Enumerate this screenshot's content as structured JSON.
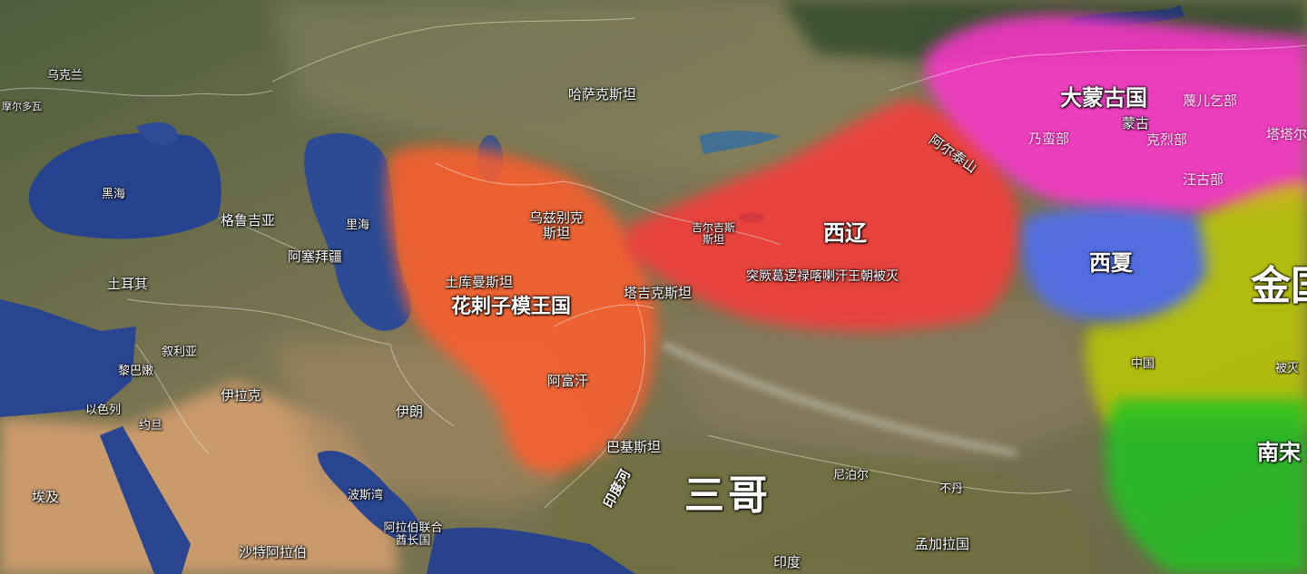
{
  "regions": {
    "khwarazm": {
      "name": "花剌子模王国",
      "color": "#ff6a3a"
    },
    "western_liao": {
      "name": "西辽",
      "subtitle": "突厥葛逻禄喀喇汗王朝被灭",
      "color": "#ff3a3a"
    },
    "mongol": {
      "name": "大蒙古国",
      "color": "#ff3dd0"
    },
    "western_xia": {
      "name": "西夏",
      "color": "#4a6aff"
    },
    "jin": {
      "name": "金国",
      "color": "#c8d000"
    },
    "southern_song": {
      "name": "南宋",
      "color": "#25c025"
    }
  },
  "labels": {
    "ukraine": "乌克兰",
    "moldova": "摩尔多瓦",
    "black_sea": "黑海",
    "georgia": "格鲁吉亚",
    "azerbaijan": "阿塞拜疆",
    "turkey": "土耳其",
    "syria": "叙利亚",
    "lebanon": "黎巴嫩",
    "iraq": "伊拉克",
    "israel": "以色列",
    "jordan": "约旦",
    "egypt": "埃及",
    "saudi": "沙特阿拉伯",
    "uae": "阿拉伯联合酋长国",
    "persian_gulf": "波斯湾",
    "iran": "伊朗",
    "caspian": "里海",
    "kazakhstan": "哈萨克斯坦",
    "uzbekistan": "乌兹别克斯坦",
    "turkmenistan": "土库曼斯坦",
    "afghanistan": "阿富汗",
    "tajikistan": "塔吉克斯坦",
    "kyrgyzstan": "吉尔吉斯斯坦",
    "pakistan": "巴基斯坦",
    "indus": "印度河",
    "india_big": "三哥",
    "india": "印度",
    "nepal": "尼泊尔",
    "bhutan": "不丹",
    "bangladesh": "孟加拉国",
    "china": "中国",
    "altai": "阿尔泰山",
    "mongolia": "蒙古",
    "naiman": "乃蛮部",
    "kereit": "克烈部",
    "ongut": "汪古部",
    "merkit": "蔑儿乞部",
    "tatar": "塔塔尔",
    "destroyed": "被灭"
  }
}
